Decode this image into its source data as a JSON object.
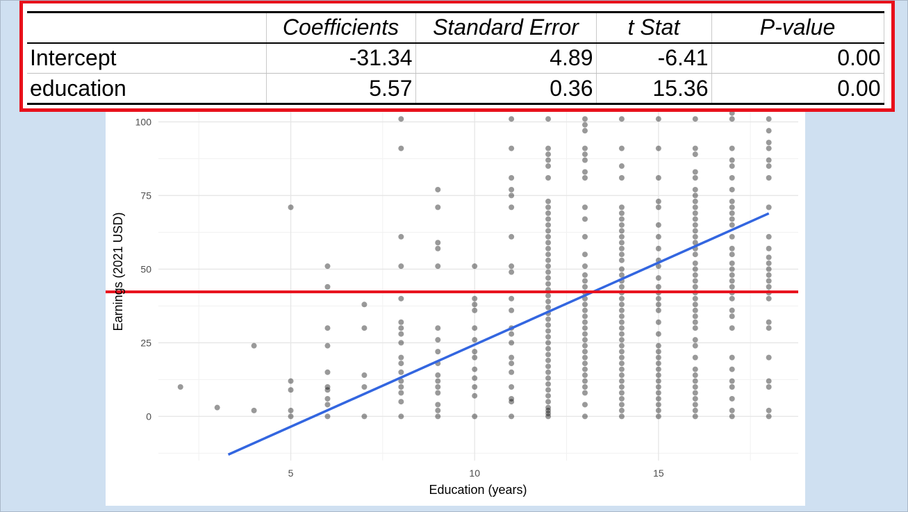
{
  "table": {
    "headers": [
      "",
      "Coefficients",
      "Standard Error",
      "t Stat",
      "P-value"
    ],
    "rows": [
      {
        "name": "Intercept",
        "coef": "-31.34",
        "se": "4.89",
        "t": "-6.41",
        "p": "0.00"
      },
      {
        "name": "education",
        "coef": "5.57",
        "se": "0.36",
        "t": "15.36",
        "p": "0.00"
      }
    ],
    "border_color": "#e8101b"
  },
  "chart_data": {
    "type": "scatter",
    "xlabel": "Education (years)",
    "ylabel": "Earnings (2021 USD)",
    "xlim": [
      1.4,
      18.8
    ],
    "ylim": [
      -15,
      106
    ],
    "x_ticks": [
      5,
      10,
      15
    ],
    "y_ticks": [
      0,
      25,
      50,
      75,
      100
    ],
    "grid": true,
    "point_color": "#000000",
    "series": [
      {
        "x": 2,
        "y": [
          10
        ]
      },
      {
        "x": 3,
        "y": [
          3
        ]
      },
      {
        "x": 4,
        "y": [
          2,
          24
        ]
      },
      {
        "x": 5,
        "y": [
          0,
          2,
          9,
          12,
          71
        ]
      },
      {
        "x": 6,
        "y": [
          0,
          4,
          6,
          9,
          10,
          15,
          24,
          30,
          44,
          51
        ]
      },
      {
        "x": 7,
        "y": [
          0,
          10,
          14,
          30,
          38
        ]
      },
      {
        "x": 8,
        "y": [
          0,
          5,
          8,
          10,
          12,
          15,
          18,
          20,
          25,
          28,
          30,
          32,
          40,
          51,
          61,
          91,
          101
        ]
      },
      {
        "x": 9,
        "y": [
          0,
          2,
          4,
          8,
          10,
          12,
          14,
          18,
          22,
          26,
          30,
          51,
          57,
          59,
          71,
          77
        ]
      },
      {
        "x": 10,
        "y": [
          0,
          7,
          10,
          13,
          16,
          20,
          22,
          26,
          30,
          36,
          38,
          40,
          51
        ]
      },
      {
        "x": 11,
        "y": [
          0,
          5,
          6,
          10,
          15,
          18,
          20,
          25,
          28,
          30,
          36,
          40,
          49,
          51,
          61,
          71,
          75,
          77,
          81,
          91,
          101
        ]
      },
      {
        "x": 12,
        "y": [
          0,
          1,
          2,
          3,
          5,
          7,
          9,
          11,
          13,
          15,
          17,
          19,
          21,
          23,
          25,
          27,
          29,
          31,
          33,
          35,
          37,
          39,
          41,
          43,
          45,
          47,
          49,
          51,
          53,
          55,
          57,
          59,
          61,
          63,
          65,
          67,
          69,
          71,
          73,
          81,
          85,
          87,
          89,
          91,
          101
        ]
      },
      {
        "x": 13,
        "y": [
          0,
          4,
          8,
          10,
          12,
          14,
          16,
          18,
          20,
          22,
          24,
          26,
          28,
          30,
          32,
          34,
          36,
          38,
          40,
          42,
          44,
          46,
          48,
          51,
          55,
          61,
          67,
          71,
          81,
          83,
          87,
          89,
          91,
          97,
          99,
          101
        ]
      },
      {
        "x": 14,
        "y": [
          0,
          2,
          4,
          6,
          8,
          10,
          12,
          14,
          16,
          18,
          20,
          22,
          24,
          26,
          28,
          30,
          32,
          34,
          36,
          38,
          40,
          42,
          44,
          46,
          48,
          50,
          53,
          55,
          57,
          59,
          61,
          63,
          65,
          67,
          69,
          71,
          81,
          85,
          91,
          101
        ]
      },
      {
        "x": 15,
        "y": [
          0,
          2,
          4,
          6,
          8,
          10,
          12,
          14,
          16,
          18,
          20,
          22,
          24,
          28,
          32,
          36,
          38,
          40,
          42,
          44,
          47,
          51,
          53,
          57,
          61,
          65,
          71,
          73,
          81,
          91,
          101,
          105
        ]
      },
      {
        "x": 16,
        "y": [
          0,
          2,
          4,
          6,
          8,
          10,
          12,
          14,
          16,
          20,
          24,
          26,
          30,
          32,
          34,
          36,
          38,
          40,
          42,
          44,
          46,
          48,
          50,
          52,
          55,
          57,
          59,
          61,
          63,
          65,
          67,
          69,
          71,
          73,
          75,
          77,
          81,
          83,
          89,
          91,
          101
        ]
      },
      {
        "x": 17,
        "y": [
          0,
          2,
          6,
          10,
          12,
          16,
          20,
          30,
          34,
          36,
          40,
          42,
          44,
          46,
          48,
          50,
          52,
          55,
          57,
          61,
          65,
          67,
          69,
          71,
          73,
          77,
          81,
          85,
          87,
          91,
          101,
          103
        ]
      },
      {
        "x": 18,
        "y": [
          0,
          2,
          10,
          12,
          20,
          30,
          32,
          40,
          42,
          44,
          46,
          48,
          50,
          52,
          54,
          57,
          61,
          71,
          81,
          85,
          87,
          91,
          93,
          97,
          101,
          105
        ]
      }
    ],
    "regression_line": {
      "intercept": -31.34,
      "slope": 5.57,
      "x_range": [
        3.3,
        18
      ],
      "color": "#3366e0"
    },
    "mean_line": {
      "y": 42.3,
      "color": "#e8101b"
    }
  }
}
